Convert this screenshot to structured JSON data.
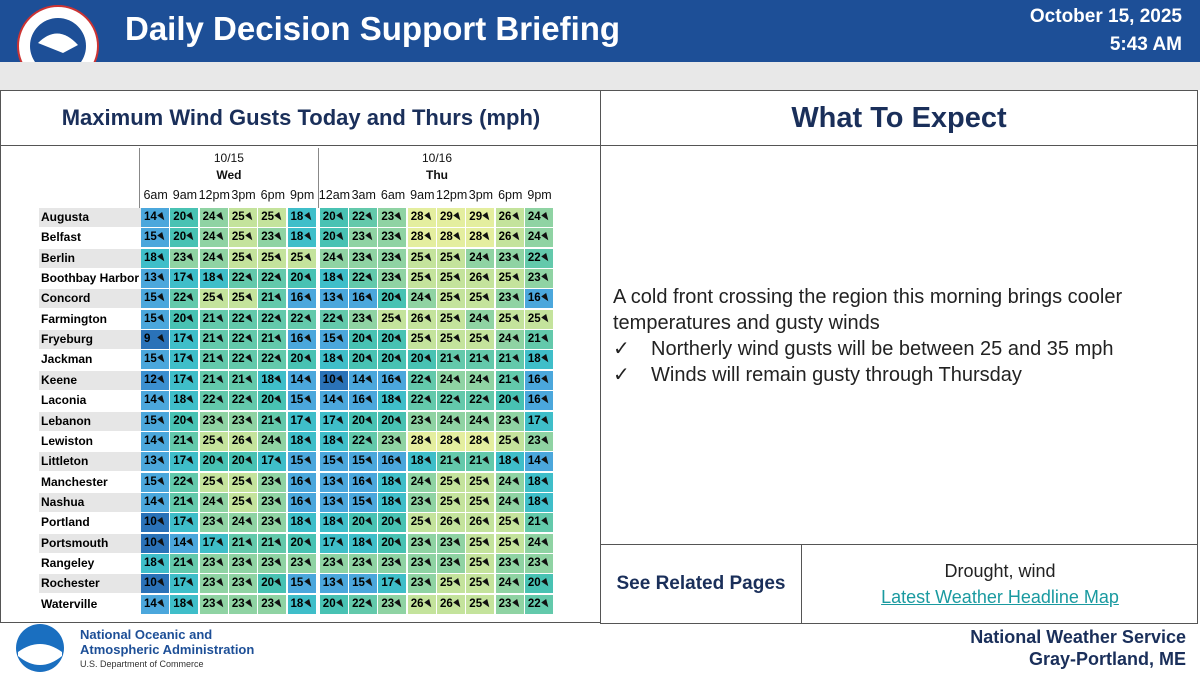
{
  "header": {
    "title": "Daily Decision Support Briefing",
    "date": "October 15, 2025",
    "time": "5:43 AM"
  },
  "left": {
    "title": "Maximum Wind Gusts Today and Thurs (mph)"
  },
  "table": {
    "days": [
      {
        "date": "10/15",
        "day": "Wed",
        "span": 6
      },
      {
        "date": "10/16",
        "day": "Thu",
        "span": 8
      }
    ],
    "times": [
      "6am",
      "9am",
      "12pm",
      "3pm",
      "6pm",
      "9pm",
      "12am",
      "3am",
      "6am",
      "9am",
      "12pm",
      "3pm",
      "6pm",
      "9pm"
    ],
    "rows": [
      {
        "name": "Augusta",
        "values": [
          14,
          20,
          24,
          25,
          25,
          18,
          20,
          22,
          23,
          28,
          29,
          29,
          26,
          24
        ]
      },
      {
        "name": "Belfast",
        "values": [
          15,
          20,
          24,
          25,
          23,
          18,
          20,
          23,
          23,
          28,
          28,
          28,
          26,
          24
        ]
      },
      {
        "name": "Berlin",
        "values": [
          18,
          23,
          24,
          25,
          25,
          25,
          24,
          23,
          23,
          25,
          25,
          24,
          23,
          22
        ]
      },
      {
        "name": "Boothbay Harbor",
        "values": [
          13,
          17,
          18,
          22,
          22,
          20,
          18,
          22,
          23,
          25,
          25,
          26,
          25,
          23
        ]
      },
      {
        "name": "Concord",
        "values": [
          15,
          22,
          25,
          25,
          21,
          16,
          13,
          16,
          20,
          24,
          25,
          25,
          23,
          16
        ]
      },
      {
        "name": "Farmington",
        "values": [
          15,
          20,
          21,
          22,
          22,
          22,
          22,
          23,
          25,
          26,
          25,
          24,
          25,
          25
        ]
      },
      {
        "name": "Fryeburg",
        "values": [
          9,
          17,
          21,
          22,
          21,
          16,
          15,
          20,
          20,
          25,
          25,
          25,
          24,
          21
        ]
      },
      {
        "name": "Jackman",
        "values": [
          15,
          17,
          21,
          22,
          22,
          20,
          18,
          20,
          20,
          20,
          21,
          21,
          21,
          18
        ]
      },
      {
        "name": "Keene",
        "values": [
          12,
          17,
          21,
          21,
          18,
          14,
          10,
          14,
          16,
          22,
          24,
          24,
          21,
          16
        ]
      },
      {
        "name": "Laconia",
        "values": [
          14,
          18,
          22,
          22,
          20,
          15,
          14,
          16,
          18,
          22,
          22,
          22,
          20,
          16
        ]
      },
      {
        "name": "Lebanon",
        "values": [
          15,
          20,
          23,
          23,
          21,
          17,
          17,
          20,
          20,
          23,
          24,
          24,
          23,
          17
        ]
      },
      {
        "name": "Lewiston",
        "values": [
          14,
          21,
          25,
          26,
          24,
          18,
          18,
          22,
          23,
          28,
          28,
          28,
          25,
          23
        ]
      },
      {
        "name": "Littleton",
        "values": [
          13,
          17,
          20,
          20,
          17,
          15,
          15,
          15,
          16,
          18,
          21,
          21,
          18,
          14
        ]
      },
      {
        "name": "Manchester",
        "values": [
          15,
          22,
          25,
          25,
          23,
          16,
          13,
          16,
          18,
          24,
          25,
          25,
          24,
          18
        ]
      },
      {
        "name": "Nashua",
        "values": [
          14,
          21,
          24,
          25,
          23,
          16,
          13,
          15,
          18,
          23,
          25,
          25,
          24,
          18
        ]
      },
      {
        "name": "Portland",
        "values": [
          10,
          17,
          23,
          24,
          23,
          18,
          18,
          20,
          20,
          25,
          26,
          26,
          25,
          21
        ]
      },
      {
        "name": "Portsmouth",
        "values": [
          10,
          14,
          17,
          21,
          21,
          20,
          17,
          18,
          20,
          23,
          23,
          25,
          25,
          24
        ]
      },
      {
        "name": "Rangeley",
        "values": [
          18,
          21,
          23,
          23,
          23,
          23,
          23,
          23,
          23,
          23,
          23,
          25,
          23,
          23
        ]
      },
      {
        "name": "Rochester",
        "values": [
          10,
          17,
          23,
          23,
          20,
          15,
          13,
          15,
          17,
          23,
          25,
          25,
          24,
          20
        ]
      },
      {
        "name": "Waterville",
        "values": [
          14,
          18,
          23,
          23,
          23,
          18,
          20,
          22,
          23,
          26,
          26,
          25,
          23,
          22
        ]
      }
    ]
  },
  "right": {
    "title": "What To Expect",
    "intro": "A cold front crossing the region this morning brings cooler temperatures and gusty winds",
    "bullets": [
      "Northerly wind gusts will be between 25 and 35 mph",
      "Winds will remain gusty through Thursday"
    ]
  },
  "related": {
    "label": "See Related Pages",
    "text": "Drought, wind",
    "link": "Latest Weather Headline Map"
  },
  "footer": {
    "left": [
      "National Oceanic and",
      "Atmospheric Administration",
      "U.S. Department of Commerce"
    ],
    "right": [
      "National Weather Service",
      "Gray-Portland, ME"
    ]
  }
}
